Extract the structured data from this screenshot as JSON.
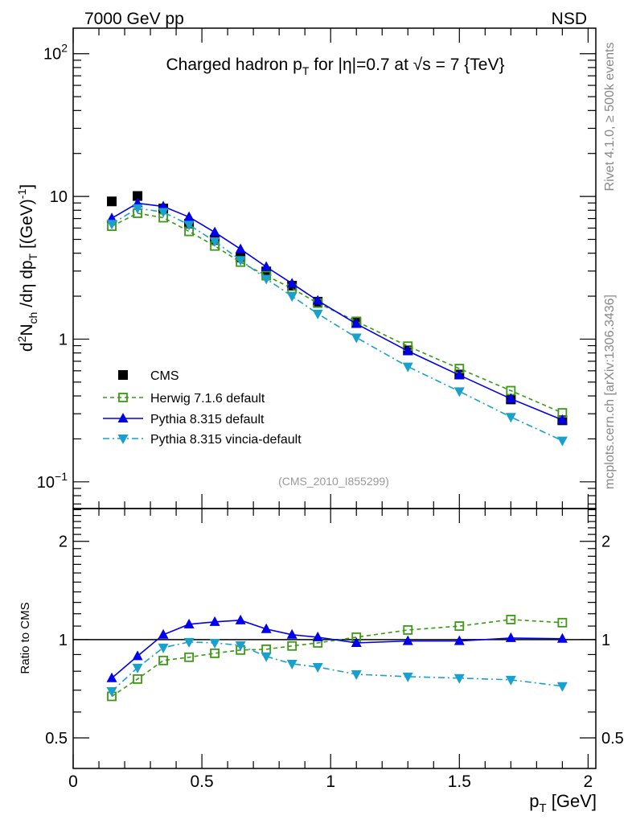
{
  "header": {
    "left": "7000 GeV pp",
    "right": "NSD"
  },
  "side_labels": {
    "rivet": "Rivet 4.1.0, ≥ 500k events",
    "source": "mcplots.cern.ch [arXiv:1306.3436]"
  },
  "analysis_id": "(CMS_2010_I855299)",
  "colors": {
    "cms": "#000000",
    "herwig": "#3a9a12",
    "pythia": "#0000ee",
    "vincia": "#1aa0cc"
  },
  "chart_data": [
    {
      "type": "line",
      "title_parts": {
        "pre": "Charged hadron p",
        "sub": "T",
        "post": " for |η|=0.7 at √s = 7 {TeV}"
      },
      "ylabel_parts": {
        "a": "d",
        "sup1": "2",
        "b": "N",
        "sub1": "ch",
        "c": " /dη dp",
        "sub2": "T",
        "d": " [(GeV)",
        "sup2": "-1",
        "e": "]"
      },
      "yscale": "log",
      "xlim": [
        0,
        2.03
      ],
      "ylim": [
        0.065,
        151
      ],
      "ytick_labels": [
        {
          "v": 100,
          "base": "10",
          "exp": "2"
        },
        {
          "v": 10,
          "text": "10"
        },
        {
          "v": 1,
          "text": "1"
        },
        {
          "v": 0.1,
          "base": "10",
          "exp": "−1"
        }
      ],
      "x": [
        0.15,
        0.25,
        0.35,
        0.45,
        0.55,
        0.65,
        0.75,
        0.85,
        0.95,
        1.1,
        1.3,
        1.5,
        1.7,
        1.9
      ],
      "legend_placement": "lower-left",
      "series": [
        {
          "name": "CMS",
          "key": "cms",
          "marker": "filled-square",
          "line": "none",
          "values": [
            9.23,
            10.07,
            8.22,
            6.44,
            4.95,
            3.73,
            2.98,
            2.37,
            1.83,
            1.31,
            0.834,
            0.565,
            0.378,
            0.27
          ]
        },
        {
          "name": "Herwig 7.1.6 default",
          "key": "herwig",
          "marker": "open-square",
          "line": "dashed",
          "ratio": [
            0.67,
            0.757,
            0.863,
            0.883,
            0.908,
            0.929,
            0.934,
            0.956,
            0.977,
            1.017,
            1.07,
            1.1,
            1.152,
            1.127
          ]
        },
        {
          "name": "Pythia 8.315 default",
          "key": "pythia",
          "marker": "triangle-up",
          "line": "solid",
          "ratio": [
            0.762,
            0.89,
            1.035,
            1.114,
            1.133,
            1.146,
            1.077,
            1.035,
            1.017,
            0.977,
            0.99,
            0.99,
            1.011,
            1.006
          ]
        },
        {
          "name": "Pythia 8.315 vincia-default",
          "key": "vincia",
          "marker": "triangle-down",
          "line": "dashdot",
          "ratio": [
            0.695,
            0.82,
            0.945,
            0.983,
            0.977,
            0.96,
            0.888,
            0.843,
            0.824,
            0.783,
            0.77,
            0.762,
            0.753,
            0.72
          ]
        }
      ]
    },
    {
      "type": "line",
      "ylabel": "Ratio to CMS",
      "yscale": "log",
      "ylim": [
        0.403,
        2.52
      ],
      "ytick_labels": [
        "2",
        "1",
        "0.5"
      ],
      "ytick_values": [
        2,
        1,
        0.5
      ],
      "xtick_labels": [
        "0",
        "0.5",
        "1",
        "1.5",
        "2"
      ],
      "xtick_values": [
        0,
        0.5,
        1,
        1.5,
        2
      ],
      "xlabel_parts": {
        "a": "p",
        "sub": "T",
        "b": " [GeV]"
      }
    }
  ]
}
